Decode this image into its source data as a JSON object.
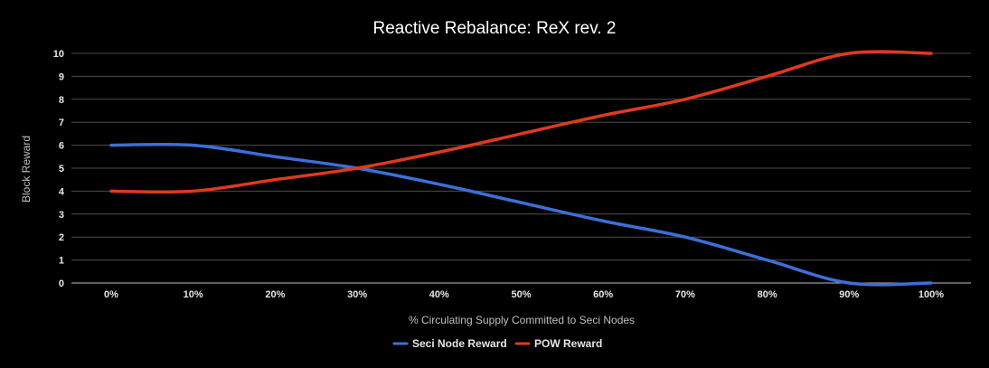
{
  "chart_data": {
    "type": "line",
    "title": "Reactive Rebalance: ReX rev. 2",
    "xlabel": "% Circulating Supply Committed to Seci Nodes",
    "ylabel": "Block Reward",
    "categories": [
      "0%",
      "10%",
      "20%",
      "30%",
      "40%",
      "50%",
      "60%",
      "70%",
      "80%",
      "90%",
      "100%"
    ],
    "x": [
      0,
      10,
      20,
      30,
      40,
      50,
      60,
      70,
      80,
      90,
      100
    ],
    "ylim": [
      0,
      10
    ],
    "yticks": [
      "0",
      "1",
      "2",
      "3",
      "4",
      "5",
      "6",
      "7",
      "8",
      "9",
      "10"
    ],
    "grid": true,
    "legend_position": "bottom",
    "series": [
      {
        "name": "Seci Node Reward",
        "color": "#3c6fd8",
        "values": [
          6,
          6,
          5.5,
          5,
          4.3,
          3.5,
          2.7,
          2,
          1,
          0,
          0
        ]
      },
      {
        "name": "POW Reward",
        "color": "#e0391f",
        "values": [
          4,
          4,
          4.5,
          5,
          5.7,
          6.5,
          7.3,
          8,
          9,
          10,
          10
        ]
      }
    ]
  }
}
